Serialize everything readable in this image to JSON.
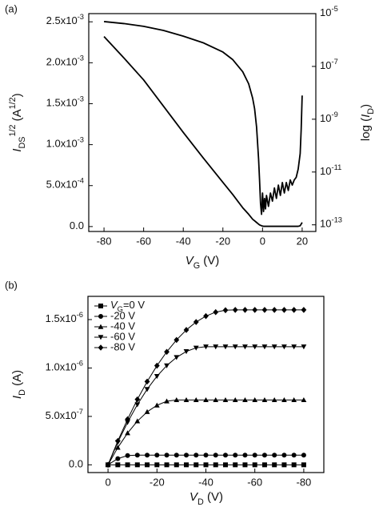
{
  "chart_data": [
    {
      "type": "line",
      "panel": "(a)",
      "xlabel": [
        {
          "text": "V",
          "style": "italic"
        },
        {
          "text": "G",
          "style": "sub"
        },
        {
          "text": " (V)"
        }
      ],
      "ylabel": [
        {
          "text": "I",
          "style": "italic"
        },
        {
          "text": "DS",
          "style": "sub"
        },
        {
          "text": "1/2",
          "style": "sup"
        },
        {
          "text": " (A"
        },
        {
          "text": "1/2",
          "style": "sup"
        },
        {
          "text": ")"
        }
      ],
      "y2label": [
        {
          "text": "log ("
        },
        {
          "text": "I",
          "style": "italic"
        },
        {
          "text": "D",
          "style": "sub"
        },
        {
          "text": ")"
        }
      ],
      "x": [
        -80,
        -70,
        -60,
        -50,
        -40,
        -30,
        -20,
        -15,
        -10,
        -7,
        -5,
        -4,
        -3,
        -2,
        -1.5,
        -1,
        -0.5,
        0,
        0.5,
        1,
        1.5,
        2,
        3,
        4,
        5,
        6,
        7,
        8,
        9,
        10,
        11,
        12,
        13,
        14,
        15,
        16,
        17,
        18,
        19,
        19.5,
        20
      ],
      "series": [
        {
          "color": "#000000",
          "axis": "y",
          "values": [
            0.00232,
            0.00206,
            0.00179,
            0.00147,
            0.00115,
            0.00084,
            0.00054,
            0.00039,
            0.00023,
            0.00015,
            9e-05,
            7e-05,
            5e-05,
            3e-05,
            2e-05,
            1.5e-05,
            1e-05,
            6e-06,
            3e-06,
            3e-06,
            3e-06,
            3e-06,
            3e-06,
            3e-06,
            3e-06,
            3e-06,
            3e-06,
            3e-06,
            3e-06,
            3e-06,
            3e-06,
            3e-06,
            3e-06,
            3e-06,
            3e-06,
            3e-06,
            3e-06,
            3e-06,
            1e-05,
            3e-05,
            5e-05
          ]
        },
        {
          "color": "#000000",
          "axis": "y2",
          "values": [
            5e-06,
            4.2e-06,
            3.3e-06,
            2.3e-06,
            1.4e-06,
            7.9e-07,
            3.5e-07,
            1.8e-07,
            6.3e-08,
            2.2e-08,
            6.3e-09,
            2.5e-09,
            5e-10,
            3.2e-11,
            5e-12,
            6.3e-13,
            2.5e-13,
            1.6e-12,
            3.2e-13,
            1e-12,
            4e-13,
            1.3e-12,
            5e-13,
            1.6e-12,
            7.9e-13,
            2.5e-12,
            1e-12,
            3.2e-12,
            1.3e-12,
            4e-12,
            1.6e-12,
            4e-12,
            2e-12,
            5e-12,
            3.2e-12,
            5e-12,
            6.3e-12,
            1.3e-11,
            5e-11,
            4e-10,
            7.9e-09
          ]
        }
      ],
      "xlim": [
        -87.7,
        26.9
      ],
      "xticks": [
        -80,
        -60,
        -40,
        -20,
        0,
        20
      ],
      "ylim": [
        -6e-05,
        0.0026
      ],
      "yticks": [
        {
          "value": 0,
          "label": "0.0"
        },
        {
          "value": 0.0005,
          "label": "5.0x10",
          "exp": "-4"
        },
        {
          "value": 0.001,
          "label": "1.0x10",
          "exp": "-3"
        },
        {
          "value": 0.0015,
          "label": "1.5x10",
          "exp": "-3"
        },
        {
          "value": 0.002,
          "label": "2.0x10",
          "exp": "-3"
        },
        {
          "value": 0.0025,
          "label": "2.5x10",
          "exp": "-3"
        }
      ],
      "y2lim": [
        5.6e-14,
        1e-05
      ],
      "y2log": true,
      "y2ticks": [
        {
          "value": 1e-05,
          "label": "10",
          "exp": "-5"
        },
        {
          "value": 1e-07,
          "label": "10",
          "exp": "-7"
        },
        {
          "value": 1e-09,
          "label": "10",
          "exp": "-9"
        },
        {
          "value": 1e-11,
          "label": "10",
          "exp": "-11"
        },
        {
          "value": 1e-13,
          "label": "10",
          "exp": "-13"
        }
      ]
    },
    {
      "type": "line",
      "panel": "(b)",
      "xlabel": [
        {
          "text": "V",
          "style": "italic"
        },
        {
          "text": "D",
          "style": "sub"
        },
        {
          "text": " (V)"
        }
      ],
      "ylabel": [
        {
          "text": "I",
          "style": "italic"
        },
        {
          "text": "D",
          "style": "sub"
        },
        {
          "text": " (A)"
        }
      ],
      "x": [
        0,
        -4,
        -8,
        -12,
        -16,
        -20,
        -24,
        -28,
        -32,
        -36,
        -40,
        -44,
        -48,
        -52,
        -56,
        -60,
        -64,
        -68,
        -72,
        -76,
        -80
      ],
      "legend": "upper left",
      "series": [
        {
          "name": [
            {
              "text": "V",
              "style": "italic"
            },
            {
              "text": "G",
              "style": "sub"
            },
            {
              "text": "=0 V"
            }
          ],
          "color": "#000000",
          "marker": "square",
          "values": [
            0,
            0,
            0,
            0,
            0,
            0,
            0,
            0,
            0,
            0,
            0,
            0,
            0,
            0,
            0,
            0,
            0,
            0,
            0,
            0,
            0
          ]
        },
        {
          "name": "-20 V",
          "color": "#000000",
          "marker": "circle",
          "values": [
            0,
            6.4e-08,
            9.6e-08,
            1e-07,
            1e-07,
            1e-07,
            1e-07,
            1e-07,
            1e-07,
            1e-07,
            1e-07,
            1e-07,
            1e-07,
            1e-07,
            1e-07,
            1e-07,
            1e-07,
            1e-07,
            1e-07,
            1e-07,
            1e-07
          ]
        },
        {
          "name": "-40 V",
          "color": "#000000",
          "marker": "triangle-up",
          "values": [
            0,
            1.78e-07,
            3.28e-07,
            4.51e-07,
            5.47e-07,
            6.15e-07,
            6.57e-07,
            6.7e-07,
            6.7e-07,
            6.7e-07,
            6.7e-07,
            6.7e-07,
            6.7e-07,
            6.7e-07,
            6.7e-07,
            6.7e-07,
            6.7e-07,
            6.7e-07,
            6.7e-07,
            6.7e-07,
            6.7e-07
          ]
        },
        {
          "name": "-60 V",
          "color": "#000000",
          "marker": "triangle-down",
          "values": [
            0,
            2.32e-07,
            4.39e-07,
            6.22e-07,
            7.81e-07,
            9.15e-07,
            1.025e-06,
            1.11e-06,
            1.171e-06,
            1.208e-06,
            1.22e-06,
            1.22e-06,
            1.22e-06,
            1.22e-06,
            1.22e-06,
            1.22e-06,
            1.22e-06,
            1.22e-06,
            1.22e-06,
            1.22e-06,
            1.22e-06
          ]
        },
        {
          "name": "-80 V",
          "color": "#000000",
          "marker": "diamond",
          "values": [
            0,
            2.46e-07,
            4.71e-07,
            6.76e-07,
            8.6e-07,
            1.024e-06,
            1.167e-06,
            1.29e-06,
            1.393e-06,
            1.475e-06,
            1.536e-06,
            1.577e-06,
            1.597e-06,
            1.6e-06,
            1.6e-06,
            1.6e-06,
            1.6e-06,
            1.6e-06,
            1.6e-06,
            1.6e-06,
            1.6e-06
          ]
        }
      ],
      "xlim": [
        8.2,
        -88.2
      ],
      "xticks": [
        0,
        -20,
        -40,
        -60,
        -80
      ],
      "ylim": [
        -8e-08,
        1.74e-06
      ],
      "yticks": [
        {
          "value": 0,
          "label": "0.0"
        },
        {
          "value": 5e-07,
          "label": "5.0x10",
          "exp": "-7"
        },
        {
          "value": 1e-06,
          "label": "1.0x10",
          "exp": "-6"
        },
        {
          "value": 1.5e-06,
          "label": "1.5x10",
          "exp": "-6"
        }
      ]
    }
  ]
}
